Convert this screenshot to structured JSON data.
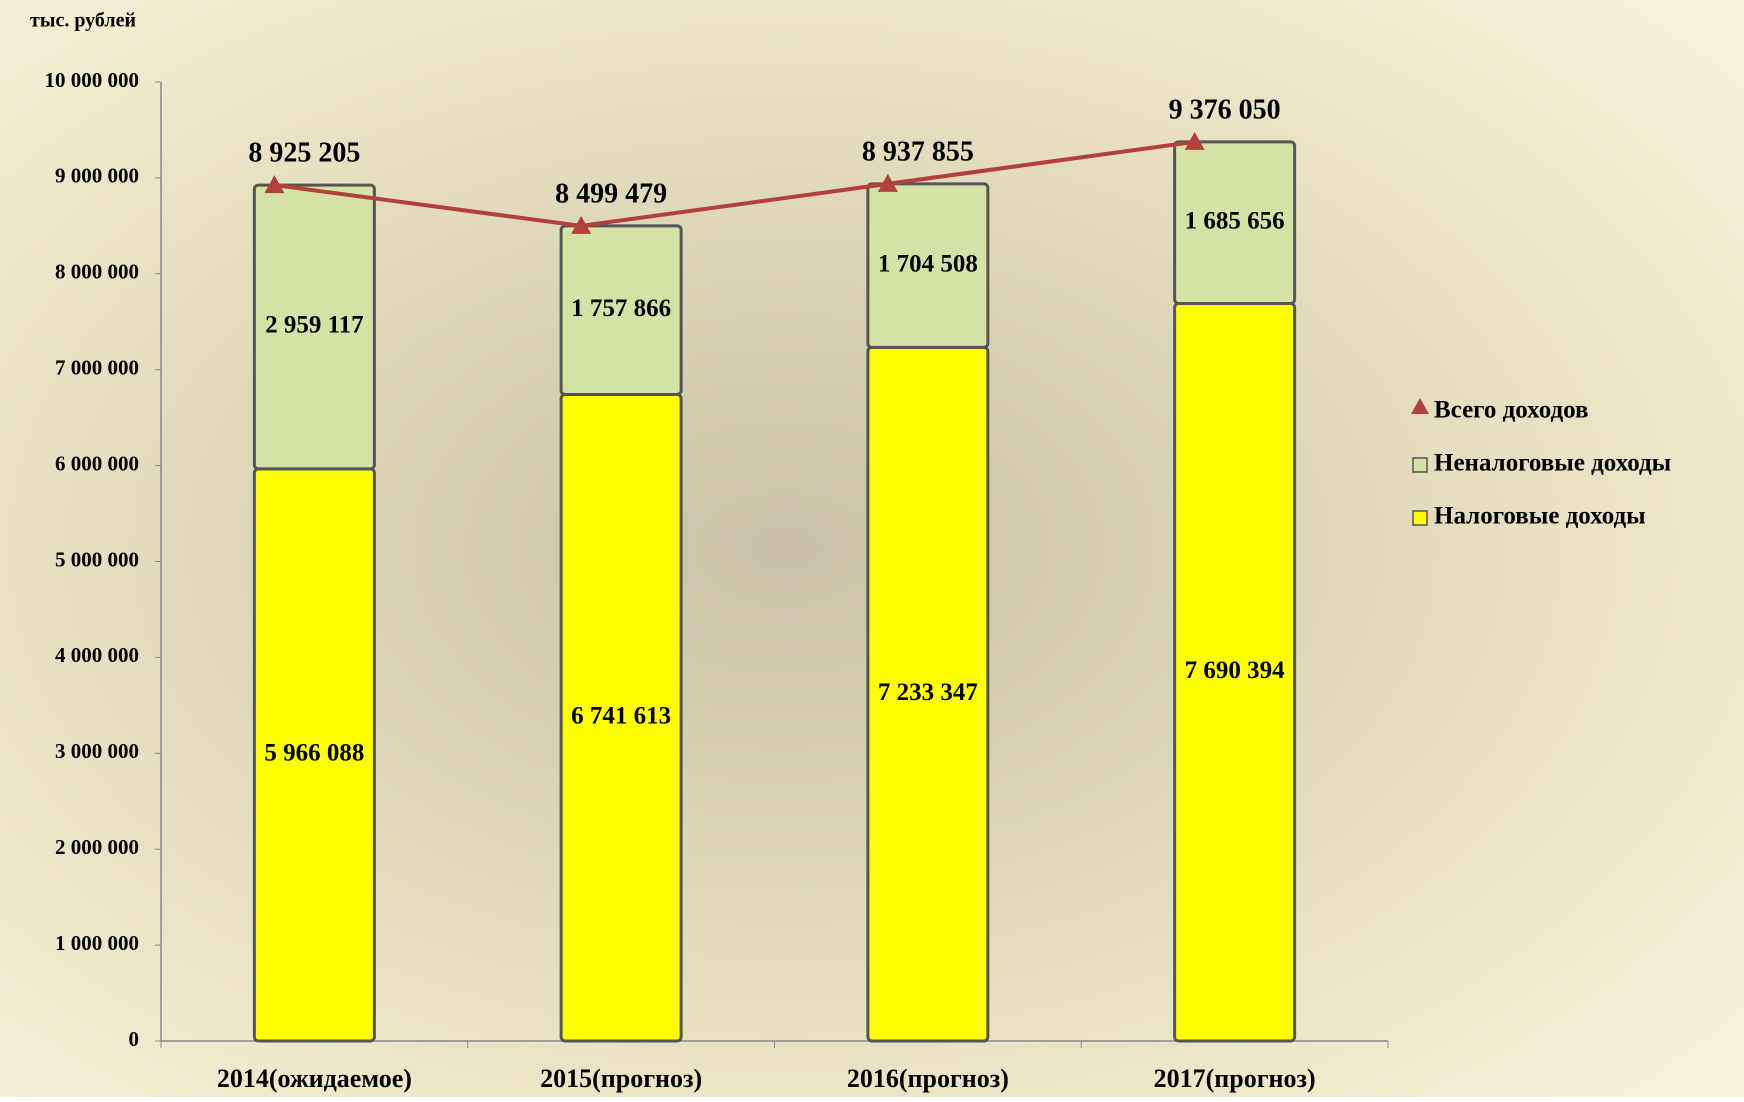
{
  "chart_data": {
    "type": "bar",
    "stacked": true,
    "y_label": "тыс. рублей",
    "categories": [
      "2014(ожидаемое)",
      "2015(прогноз)",
      "2016(прогноз)",
      "2017(прогноз)"
    ],
    "ylim": [
      0,
      10000000
    ],
    "yticks": [
      0,
      {
        "value": 1000000,
        "label": "1 000 000"
      },
      {
        "value": 2000000,
        "label": "2 000 000"
      },
      {
        "value": 3000000,
        "label": "3 000 000"
      },
      {
        "value": 4000000,
        "label": "4 000 000"
      },
      {
        "value": 5000000,
        "label": "5 000 000"
      },
      {
        "value": 6000000,
        "label": "6 000 000"
      },
      {
        "value": 7000000,
        "label": "7 000 000"
      },
      {
        "value": 8000000,
        "label": "8 000 000"
      },
      {
        "value": 9000000,
        "label": "9 000 000"
      },
      {
        "value": 10000000,
        "label": "10 000 000"
      }
    ],
    "series": [
      {
        "name": "Налоговые доходы",
        "type": "bar",
        "color": "#ffff00",
        "values": [
          5966088,
          6741613,
          7233347,
          7690394
        ],
        "value_labels": [
          "5 966 088",
          "6 741 613",
          "7 233 347",
          "7 690 394"
        ]
      },
      {
        "name": "Неналоговые доходы",
        "type": "bar",
        "color": "#d4e2a6",
        "values": [
          2959117,
          1757866,
          1704508,
          1685656
        ],
        "value_labels": [
          "2 959 117",
          "1 757 866",
          "1 704 508",
          "1 685 656"
        ]
      },
      {
        "name": "Всего доходов",
        "type": "line",
        "color": "#b3403d",
        "values": [
          8925205,
          8499479,
          8937855,
          9376050
        ],
        "value_labels": [
          "8 925 205",
          "8 499 479",
          "8 937 855",
          "9 376 050"
        ]
      }
    ],
    "legend": "right"
  }
}
